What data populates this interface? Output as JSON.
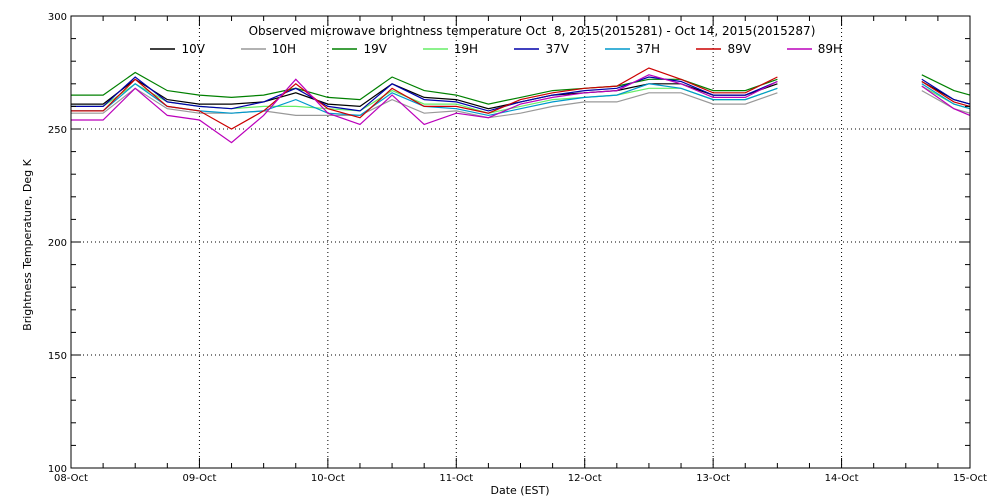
{
  "chart_data": {
    "type": "line",
    "title": "Observed microwave brightness temperature Oct  8, 2015(2015281) - Oct 14, 2015(2015287)",
    "xlabel": "Date (EST)",
    "ylabel": "Brightness Temperature, Deg K",
    "x_ticks": [
      "08-Oct",
      "09-Oct",
      "10-Oct",
      "11-Oct",
      "12-Oct",
      "13-Oct",
      "14-Oct",
      "15-Oct"
    ],
    "y_ticks": [
      100,
      150,
      200,
      250,
      300
    ],
    "ylim": [
      100,
      300
    ],
    "xlim": [
      "2015-10-08",
      "2015-10-15"
    ],
    "grid": true,
    "legend_position": "top",
    "series": [
      {
        "name": "10V",
        "color": "#000000",
        "x": [
          "2015-10-08 00:00",
          "2015-10-08 06:00",
          "2015-10-08 12:00",
          "2015-10-08 18:00",
          "2015-10-09 00:00",
          "2015-10-09 06:00",
          "2015-10-09 12:00",
          "2015-10-09 18:00",
          "2015-10-10 00:00",
          "2015-10-10 06:00",
          "2015-10-10 12:00",
          "2015-10-10 18:00",
          "2015-10-11 00:00",
          "2015-10-11 06:00",
          "2015-10-11 12:00",
          "2015-10-11 18:00",
          "2015-10-12 00:00",
          "2015-10-12 06:00",
          "2015-10-12 12:00",
          "2015-10-12 18:00",
          "2015-10-13 00:00",
          "2015-10-13 06:00",
          "2015-10-13 12:00",
          "2015-10-14 15:00",
          "2015-10-14 21:00",
          "2015-10-15 00:00"
        ],
        "y": [
          261,
          261,
          272,
          263,
          261,
          261,
          262,
          266,
          261,
          260,
          270,
          264,
          263,
          259,
          262,
          265,
          266,
          267,
          270,
          270,
          265,
          265,
          270,
          271,
          263,
          261
        ]
      },
      {
        "name": "10H",
        "color": "#999999",
        "x": [
          "2015-10-08 00:00",
          "2015-10-08 06:00",
          "2015-10-08 12:00",
          "2015-10-08 18:00",
          "2015-10-09 00:00",
          "2015-10-09 06:00",
          "2015-10-09 12:00",
          "2015-10-09 18:00",
          "2015-10-10 00:00",
          "2015-10-10 06:00",
          "2015-10-10 12:00",
          "2015-10-10 18:00",
          "2015-10-11 00:00",
          "2015-10-11 06:00",
          "2015-10-11 12:00",
          "2015-10-11 18:00",
          "2015-10-12 00:00",
          "2015-10-12 06:00",
          "2015-10-12 12:00",
          "2015-10-12 18:00",
          "2015-10-13 00:00",
          "2015-10-13 06:00",
          "2015-10-13 12:00",
          "2015-10-14 15:00",
          "2015-10-14 21:00",
          "2015-10-15 00:00"
        ],
        "y": [
          257,
          257,
          268,
          259,
          257,
          257,
          258,
          256,
          256,
          256,
          263,
          257,
          258,
          255,
          257,
          260,
          262,
          262,
          266,
          266,
          261,
          261,
          266,
          267,
          259,
          257
        ]
      },
      {
        "name": "19V",
        "color": "#008000",
        "x": [
          "2015-10-08 00:00",
          "2015-10-08 06:00",
          "2015-10-08 12:00",
          "2015-10-08 18:00",
          "2015-10-09 00:00",
          "2015-10-09 06:00",
          "2015-10-09 12:00",
          "2015-10-09 18:00",
          "2015-10-10 00:00",
          "2015-10-10 06:00",
          "2015-10-10 12:00",
          "2015-10-10 18:00",
          "2015-10-11 00:00",
          "2015-10-11 06:00",
          "2015-10-11 12:00",
          "2015-10-11 18:00",
          "2015-10-12 00:00",
          "2015-10-12 06:00",
          "2015-10-12 12:00",
          "2015-10-12 18:00",
          "2015-10-13 00:00",
          "2015-10-13 06:00",
          "2015-10-13 12:00",
          "2015-10-14 15:00",
          "2015-10-14 21:00",
          "2015-10-15 00:00"
        ],
        "y": [
          265,
          265,
          275,
          267,
          265,
          264,
          265,
          268,
          264,
          263,
          273,
          267,
          265,
          261,
          264,
          267,
          268,
          269,
          272,
          272,
          267,
          267,
          272,
          274,
          267,
          265
        ]
      },
      {
        "name": "19H",
        "color": "#66ee66",
        "x": [
          "2015-10-08 00:00",
          "2015-10-08 06:00",
          "2015-10-08 12:00",
          "2015-10-08 18:00",
          "2015-10-09 00:00",
          "2015-10-09 06:00",
          "2015-10-09 12:00",
          "2015-10-09 18:00",
          "2015-10-10 00:00",
          "2015-10-10 06:00",
          "2015-10-10 12:00",
          "2015-10-10 18:00",
          "2015-10-11 00:00",
          "2015-10-11 06:00",
          "2015-10-11 12:00",
          "2015-10-11 18:00",
          "2015-10-12 00:00",
          "2015-10-12 06:00",
          "2015-10-12 12:00",
          "2015-10-12 18:00",
          "2015-10-13 00:00",
          "2015-10-13 06:00",
          "2015-10-13 12:00",
          "2015-10-14 15:00",
          "2015-10-14 21:00",
          "2015-10-15 00:00"
        ],
        "y": [
          260,
          260,
          270,
          262,
          260,
          259,
          260,
          260,
          259,
          258,
          267,
          261,
          261,
          257,
          260,
          263,
          264,
          265,
          268,
          268,
          263,
          263,
          268,
          269,
          261,
          259
        ]
      },
      {
        "name": "37V",
        "color": "#0000aa",
        "x": [
          "2015-10-08 00:00",
          "2015-10-08 06:00",
          "2015-10-08 12:00",
          "2015-10-08 18:00",
          "2015-10-09 00:00",
          "2015-10-09 06:00",
          "2015-10-09 12:00",
          "2015-10-09 18:00",
          "2015-10-10 00:00",
          "2015-10-10 06:00",
          "2015-10-10 12:00",
          "2015-10-10 18:00",
          "2015-10-11 00:00",
          "2015-10-11 06:00",
          "2015-10-11 12:00",
          "2015-10-11 18:00",
          "2015-10-12 00:00",
          "2015-10-12 06:00",
          "2015-10-12 12:00",
          "2015-10-12 18:00",
          "2015-10-13 00:00",
          "2015-10-13 06:00",
          "2015-10-13 12:00",
          "2015-10-14 15:00",
          "2015-10-14 21:00",
          "2015-10-15 00:00"
        ],
        "y": [
          260,
          260,
          273,
          262,
          260,
          259,
          262,
          268,
          260,
          258,
          270,
          263,
          262,
          258,
          262,
          265,
          267,
          268,
          273,
          271,
          265,
          265,
          271,
          272,
          263,
          261
        ]
      },
      {
        "name": "37H",
        "color": "#0099cc",
        "x": [
          "2015-10-08 00:00",
          "2015-10-08 06:00",
          "2015-10-08 12:00",
          "2015-10-08 18:00",
          "2015-10-09 00:00",
          "2015-10-09 06:00",
          "2015-10-09 12:00",
          "2015-10-09 18:00",
          "2015-10-10 00:00",
          "2015-10-10 06:00",
          "2015-10-10 12:00",
          "2015-10-10 18:00",
          "2015-10-11 00:00",
          "2015-10-11 06:00",
          "2015-10-11 12:00",
          "2015-10-11 18:00",
          "2015-10-12 00:00",
          "2015-10-12 06:00",
          "2015-10-12 12:00",
          "2015-10-12 18:00",
          "2015-10-13 00:00",
          "2015-10-13 06:00",
          "2015-10-13 12:00",
          "2015-10-14 15:00",
          "2015-10-14 21:00",
          "2015-10-15 00:00"
        ],
        "y": [
          258,
          258,
          270,
          260,
          258,
          257,
          258,
          263,
          257,
          256,
          266,
          260,
          259,
          256,
          259,
          262,
          264,
          265,
          270,
          268,
          263,
          263,
          268,
          270,
          261,
          259
        ]
      },
      {
        "name": "89V",
        "color": "#cc0000",
        "x": [
          "2015-10-08 00:00",
          "2015-10-08 06:00",
          "2015-10-08 12:00",
          "2015-10-08 18:00",
          "2015-10-09 00:00",
          "2015-10-09 06:00",
          "2015-10-09 12:00",
          "2015-10-09 18:00",
          "2015-10-10 00:00",
          "2015-10-10 06:00",
          "2015-10-10 12:00",
          "2015-10-10 18:00",
          "2015-10-11 00:00",
          "2015-10-11 06:00",
          "2015-10-11 12:00",
          "2015-10-11 18:00",
          "2015-10-12 00:00",
          "2015-10-12 06:00",
          "2015-10-12 12:00",
          "2015-10-12 18:00",
          "2015-10-13 00:00",
          "2015-10-13 06:00",
          "2015-10-13 12:00",
          "2015-10-14 15:00",
          "2015-10-14 21:00",
          "2015-10-15 00:00"
        ],
        "y": [
          258,
          258,
          272,
          260,
          258,
          250,
          258,
          270,
          259,
          255,
          268,
          260,
          260,
          257,
          263,
          266,
          268,
          269,
          277,
          272,
          266,
          266,
          273,
          271,
          262,
          260
        ]
      },
      {
        "name": "89H",
        "color": "#bb00bb",
        "x": [
          "2015-10-08 00:00",
          "2015-10-08 06:00",
          "2015-10-08 12:00",
          "2015-10-08 18:00",
          "2015-10-09 00:00",
          "2015-10-09 06:00",
          "2015-10-09 12:00",
          "2015-10-09 18:00",
          "2015-10-10 00:00",
          "2015-10-10 06:00",
          "2015-10-10 12:00",
          "2015-10-10 18:00",
          "2015-10-11 00:00",
          "2015-10-11 06:00",
          "2015-10-11 12:00",
          "2015-10-11 18:00",
          "2015-10-12 00:00",
          "2015-10-12 06:00",
          "2015-10-12 12:00",
          "2015-10-12 18:00",
          "2015-10-13 00:00",
          "2015-10-13 06:00",
          "2015-10-13 12:00",
          "2015-10-14 15:00",
          "2015-10-14 21:00",
          "2015-10-15 00:00"
        ],
        "y": [
          254,
          254,
          268,
          256,
          254,
          244,
          256,
          272,
          257,
          252,
          265,
          252,
          257,
          255,
          261,
          264,
          266,
          267,
          274,
          270,
          264,
          264,
          271,
          269,
          259,
          256
        ]
      }
    ]
  }
}
